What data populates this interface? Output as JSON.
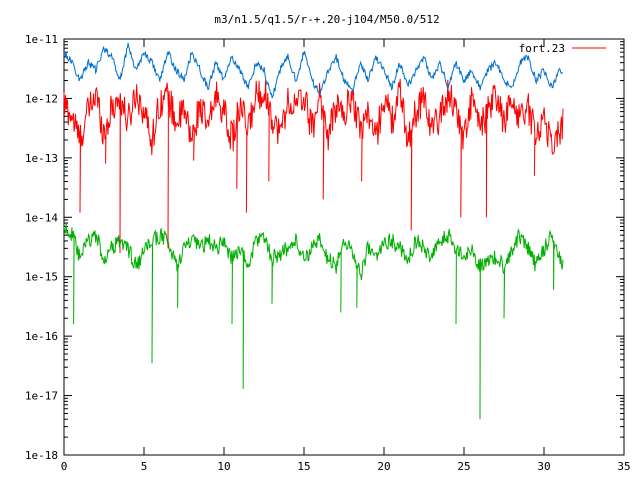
{
  "chart_data": {
    "type": "line",
    "title": "m3/n1.5/q1.5/r-+.20-j104/M50.0/512",
    "xlabel": "",
    "ylabel": "",
    "xlim": [
      0,
      35
    ],
    "ylim": [
      1e-18,
      1e-11
    ],
    "yscale": "log",
    "grid": false,
    "legend_position": "top-right",
    "x_ticks": [
      0,
      5,
      10,
      15,
      20,
      25,
      30,
      35
    ],
    "x_tick_labels": [
      "0",
      "5",
      "10",
      "15",
      "20",
      "25",
      "30",
      "35"
    ],
    "y_ticks": [
      1e-18,
      1e-17,
      1e-16,
      1e-15,
      1e-14,
      1e-13,
      1e-12,
      1e-11
    ],
    "y_tick_labels": [
      "1e-18",
      "1e-17",
      "1e-16",
      "1e-15",
      "1e-14",
      "1e-13",
      "1e-12",
      "1e-11"
    ],
    "series": [
      {
        "name": "fort.23",
        "color": "#ff0000",
        "x": [
          0,
          0.5,
          1,
          1.5,
          2,
          2.5,
          3,
          3.5,
          4,
          4.5,
          5,
          5.5,
          6,
          6.5,
          7,
          7.5,
          8,
          8.5,
          9,
          9.5,
          10,
          10.5,
          11,
          11.5,
          12,
          12.5,
          13,
          13.5,
          14,
          14.5,
          15,
          15.5,
          16,
          16.5,
          17,
          17.5,
          18,
          18.5,
          19,
          19.5,
          20,
          20.5,
          21,
          21.5,
          22,
          22.5,
          23,
          23.5,
          24,
          24.5,
          25,
          25.5,
          26,
          26.5,
          27,
          27.5,
          28,
          28.5,
          29,
          29.5,
          30,
          30.5,
          31,
          31.2
        ],
        "y": [
          8e-13,
          5e-13,
          2e-13,
          6e-13,
          1.2e-12,
          2.5e-13,
          7e-13,
          1e-12,
          4e-13,
          1.3e-12,
          6e-13,
          2e-13,
          9e-13,
          1.1e-12,
          4e-13,
          6e-13,
          2e-13,
          8e-13,
          3e-13,
          1.2e-12,
          6e-13,
          2e-13,
          7e-13,
          3e-13,
          1.1e-12,
          1.4e-12,
          5e-13,
          2.5e-13,
          9e-13,
          7e-13,
          1.1e-12,
          3e-13,
          1.2e-12,
          2e-13,
          8e-13,
          5e-13,
          1.2e-12,
          3e-13,
          6e-13,
          2e-13,
          1.1e-12,
          4e-13,
          1.3e-12,
          2e-13,
          6e-13,
          1.1e-12,
          3e-13,
          5e-13,
          1.2e-12,
          7e-13,
          2e-13,
          1e-12,
          3e-13,
          6e-13,
          1.1e-12,
          4e-13,
          9e-13,
          5e-13,
          7e-13,
          2.5e-13,
          5e-13,
          1.5e-13,
          3e-13,
          4e-13
        ],
        "dips": [
          [
            1.0,
            1.2e-14
          ],
          [
            2.6,
            8e-14
          ],
          [
            3.5,
            2.5e-15
          ],
          [
            6.5,
            3e-15
          ],
          [
            8.1,
            9e-14
          ],
          [
            10.8,
            3e-14
          ],
          [
            11.4,
            1.2e-14
          ],
          [
            12.8,
            4e-14
          ],
          [
            16.2,
            2e-14
          ],
          [
            18.6,
            4e-14
          ],
          [
            21.7,
            6e-15
          ],
          [
            24.8,
            1e-14
          ],
          [
            26.4,
            1e-14
          ],
          [
            29.4,
            5e-14
          ]
        ]
      },
      {
        "name": "",
        "color": "#0070d0",
        "x": [
          0,
          0.5,
          1,
          1.5,
          2,
          2.5,
          3,
          3.5,
          4,
          4.5,
          5,
          5.5,
          6,
          6.5,
          7,
          7.5,
          8,
          8.5,
          9,
          9.5,
          10,
          10.5,
          11,
          11.5,
          12,
          12.5,
          13,
          13.5,
          14,
          14.5,
          15,
          15.5,
          16,
          16.5,
          17,
          17.5,
          18,
          18.5,
          19,
          19.5,
          20,
          20.5,
          21,
          21.5,
          22,
          22.5,
          23,
          23.5,
          24,
          24.5,
          25,
          25.5,
          26,
          26.5,
          27,
          27.5,
          28,
          28.5,
          29,
          29.5,
          30,
          30.5,
          31,
          31.2
        ],
        "y": [
          6e-12,
          4e-12,
          2e-12,
          4e-12,
          3e-12,
          7e-12,
          5e-12,
          2e-12,
          8e-12,
          3e-12,
          6e-12,
          4e-12,
          2e-12,
          6e-12,
          3e-12,
          2e-12,
          6e-12,
          3e-12,
          1.5e-12,
          4e-12,
          2e-12,
          5e-12,
          3e-12,
          1.5e-12,
          4e-12,
          3e-12,
          1e-12,
          3e-12,
          5e-12,
          2e-12,
          6e-12,
          2e-12,
          1.2e-12,
          3e-12,
          5e-12,
          2e-12,
          1.3e-12,
          4e-12,
          2e-12,
          5e-12,
          3e-12,
          1.5e-12,
          4e-12,
          1.6e-12,
          3e-12,
          5e-12,
          2e-12,
          4e-12,
          1.5e-12,
          4e-12,
          2e-12,
          3e-12,
          1.5e-12,
          3e-12,
          4e-12,
          2e-12,
          1.5e-12,
          4e-12,
          5e-12,
          2e-12,
          3e-12,
          1.5e-12,
          3e-12,
          2.5e-12
        ]
      },
      {
        "name": "",
        "color": "#00b000",
        "x": [
          0,
          0.5,
          1,
          1.5,
          2,
          2.5,
          3,
          3.5,
          4,
          4.5,
          5,
          5.5,
          6,
          6.5,
          7,
          7.5,
          8,
          8.5,
          9,
          9.5,
          10,
          10.5,
          11,
          11.5,
          12,
          12.5,
          13,
          13.5,
          14,
          14.5,
          15,
          15.5,
          16,
          16.5,
          17,
          17.5,
          18,
          18.5,
          19,
          19.5,
          20,
          20.5,
          21,
          21.5,
          22,
          22.5,
          23,
          23.5,
          24,
          24.5,
          25,
          25.5,
          26,
          26.5,
          27,
          27.5,
          28,
          28.5,
          29,
          29.5,
          30,
          30.5,
          31,
          31.2
        ],
        "y": [
          7e-15,
          5e-15,
          2e-15,
          4e-15,
          5e-15,
          2e-15,
          3e-15,
          4e-15,
          3e-15,
          1.5e-15,
          2.5e-15,
          4e-15,
          5e-15,
          4e-15,
          1.5e-15,
          3e-15,
          4e-15,
          3e-15,
          4e-15,
          3e-15,
          4e-15,
          2e-15,
          3e-15,
          1.5e-15,
          4e-15,
          5e-15,
          2e-15,
          2.5e-15,
          3e-15,
          4e-15,
          2e-15,
          3e-15,
          4e-15,
          2e-15,
          1.5e-15,
          4e-15,
          3e-15,
          1e-15,
          3e-15,
          2e-15,
          4e-15,
          4e-15,
          3e-15,
          2e-15,
          4e-15,
          3e-15,
          2e-15,
          4e-15,
          5e-15,
          3e-15,
          2e-15,
          3e-15,
          1.5e-15,
          2e-15,
          2e-15,
          1.5e-15,
          3e-15,
          5e-15,
          3e-15,
          1.5e-15,
          3e-15,
          5e-15,
          2e-15,
          1.5e-15
        ],
        "dips": [
          [
            0.6,
            1.6e-16
          ],
          [
            5.5,
            3.5e-17
          ],
          [
            7.1,
            3e-16
          ],
          [
            10.5,
            1.6e-16
          ],
          [
            11.2,
            1.3e-17
          ],
          [
            13.0,
            3.5e-16
          ],
          [
            17.3,
            2.5e-16
          ],
          [
            18.3,
            3e-16
          ],
          [
            24.5,
            1.6e-16
          ],
          [
            26.0,
            4e-18
          ],
          [
            27.5,
            2e-16
          ],
          [
            30.6,
            6e-16
          ]
        ]
      }
    ]
  }
}
